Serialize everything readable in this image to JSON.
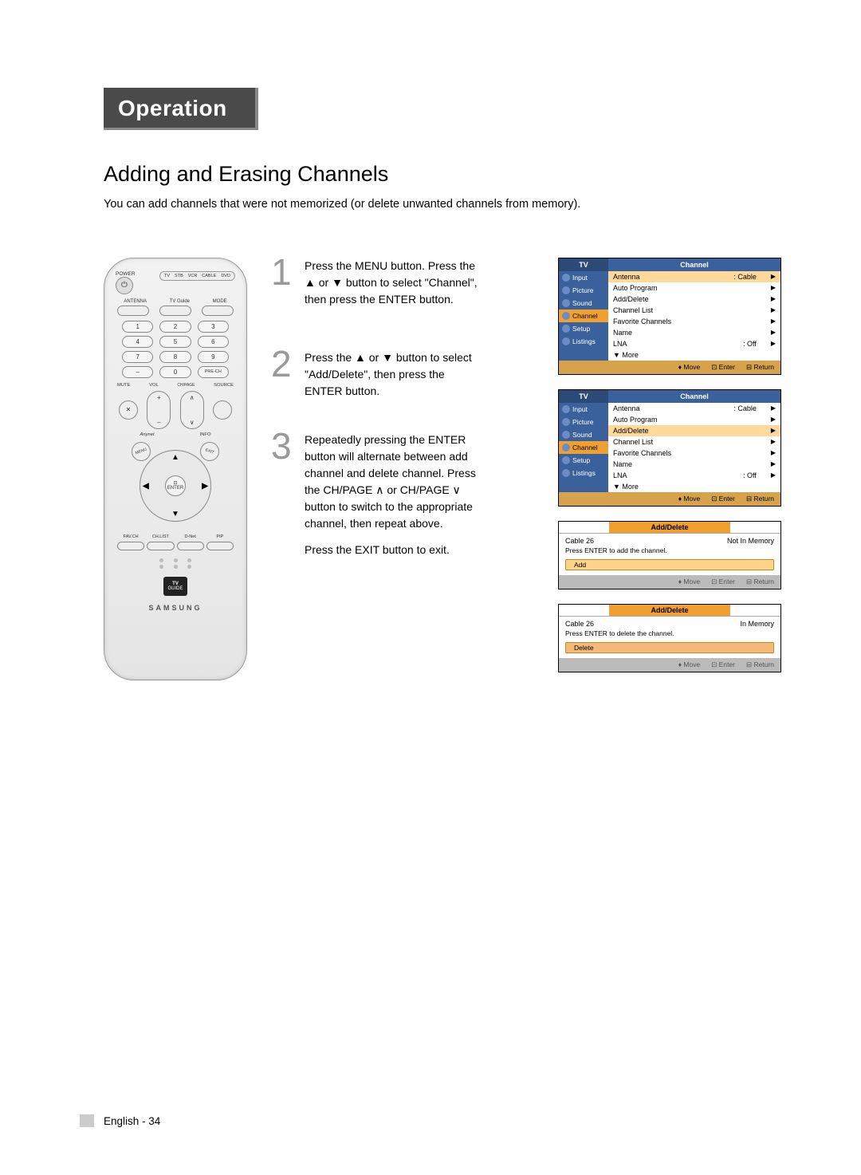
{
  "header_tab": "Operation",
  "section_title": "Adding and Erasing Channels",
  "intro": "You can add channels that were not memorized (or delete unwanted channels from memory).",
  "remote": {
    "power": "POWER",
    "modes": [
      "TV",
      "STB",
      "VCR",
      "CABLE",
      "DVD"
    ],
    "row1_labels": [
      "ANTENNA",
      "TV Guide",
      "MODE"
    ],
    "nums": [
      "1",
      "2",
      "3",
      "4",
      "5",
      "6",
      "7",
      "8",
      "9",
      "–",
      "0",
      "PRE-CH"
    ],
    "vol": "VOL",
    "ch": "CH/PAGE",
    "mute": "MUTE",
    "source": "SOURCE",
    "anynet": "Anynet",
    "info": "INFO",
    "menu": "MENU",
    "exit": "EXIT",
    "enter": "ENTER",
    "bottom": [
      "FAV.CH",
      "CH.LIST",
      "D-Net",
      "PIP"
    ],
    "brand": "SAMSUNG",
    "tvguide_top": "TV",
    "tvguide_bot": "GUIDE"
  },
  "steps": [
    {
      "n": "1",
      "text": "Press the MENU button.\nPress the ▲ or ▼ button to select \"Channel\", then press the ENTER button."
    },
    {
      "n": "2",
      "text": "Press the ▲ or ▼ button to select \"Add/Delete\", then press the ENTER button."
    },
    {
      "n": "3",
      "text": "Repeatedly pressing the ENTER button will alternate between add channel and delete channel.\nPress the CH/PAGE ∧ or CH/PAGE ∨ button to switch to the appropriate channel, then repeat above.",
      "text2": "Press the EXIT button to exit."
    }
  ],
  "osd_side": [
    "Input",
    "Picture",
    "Sound",
    "Channel",
    "Setup",
    "Listings"
  ],
  "osd_corner": "TV",
  "osd_title": "Channel",
  "osd_rows": [
    {
      "l": "Antenna",
      "r": ": Cable"
    },
    {
      "l": "Auto Program",
      "r": ""
    },
    {
      "l": "Add/Delete",
      "r": ""
    },
    {
      "l": "Channel List",
      "r": ""
    },
    {
      "l": "Favorite Channels",
      "r": ""
    },
    {
      "l": "Name",
      "r": ""
    },
    {
      "l": "LNA",
      "r": ": Off"
    },
    {
      "l": "▼ More",
      "r": "",
      "noarrow": true
    }
  ],
  "osd1_hl": 0,
  "osd2_hl": 2,
  "osd_foot": {
    "move": "Move",
    "enter": "Enter",
    "ret": "Return"
  },
  "ad_title": "Add/Delete",
  "ad1": {
    "left": "Cable   26",
    "right": "Not In Memory",
    "hint": "Press ENTER to add the channel.",
    "btn": "Add"
  },
  "ad2": {
    "left": "Cable   26",
    "right": "In Memory",
    "hint": "Press ENTER to delete the channel.",
    "btn": "Delete"
  },
  "footer": "English - 34"
}
